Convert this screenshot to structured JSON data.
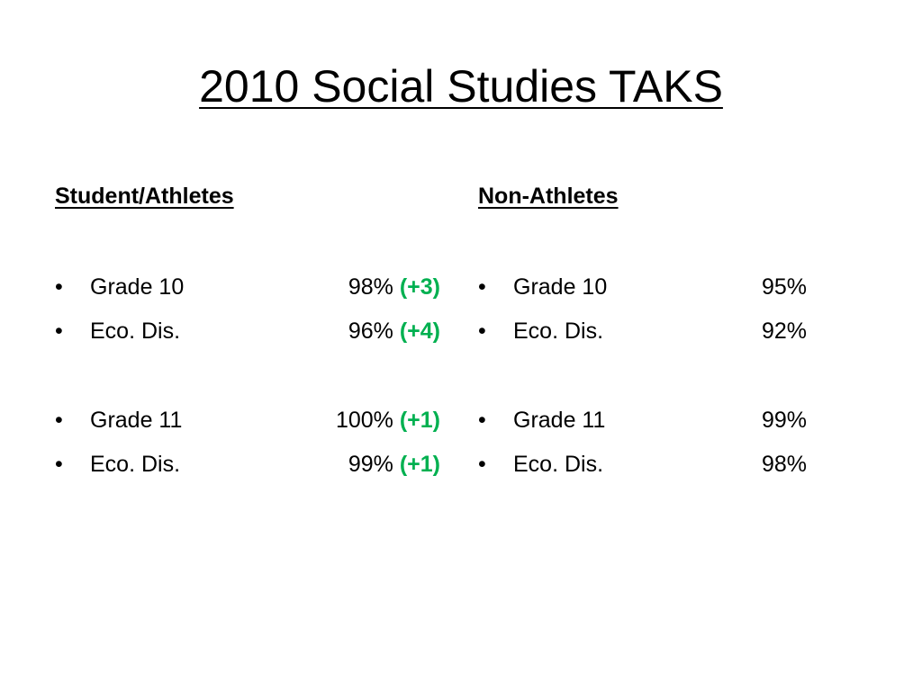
{
  "slide": {
    "title": "2010 Social Studies TAKS"
  },
  "left_column": {
    "heading": "Student/Athletes",
    "rows": [
      {
        "bullet": "•",
        "label": "Grade 10",
        "value": "98%",
        "change": "(+3)"
      },
      {
        "bullet": "•",
        "label": "Eco. Dis.",
        "value": "96%",
        "change": "(+4)"
      },
      {
        "bullet": "•",
        "label": "Grade 11",
        "value": "100%",
        "change": "(+1)"
      },
      {
        "bullet": "•",
        "label": "Eco. Dis.",
        "value": "99%",
        "change": "(+1)"
      }
    ]
  },
  "right_column": {
    "heading": "Non-Athletes",
    "rows": [
      {
        "bullet": "•",
        "label": "Grade 10",
        "value": "95%"
      },
      {
        "bullet": "•",
        "label": "Eco. Dis.",
        "value": "92%"
      },
      {
        "bullet": "•",
        "label": "Grade 11",
        "value": "99%"
      },
      {
        "bullet": "•",
        "label": "Eco. Dis.",
        "value": "98%"
      }
    ]
  },
  "colors": {
    "change_positive": "#00b050",
    "text": "#000000",
    "background": "#ffffff"
  }
}
